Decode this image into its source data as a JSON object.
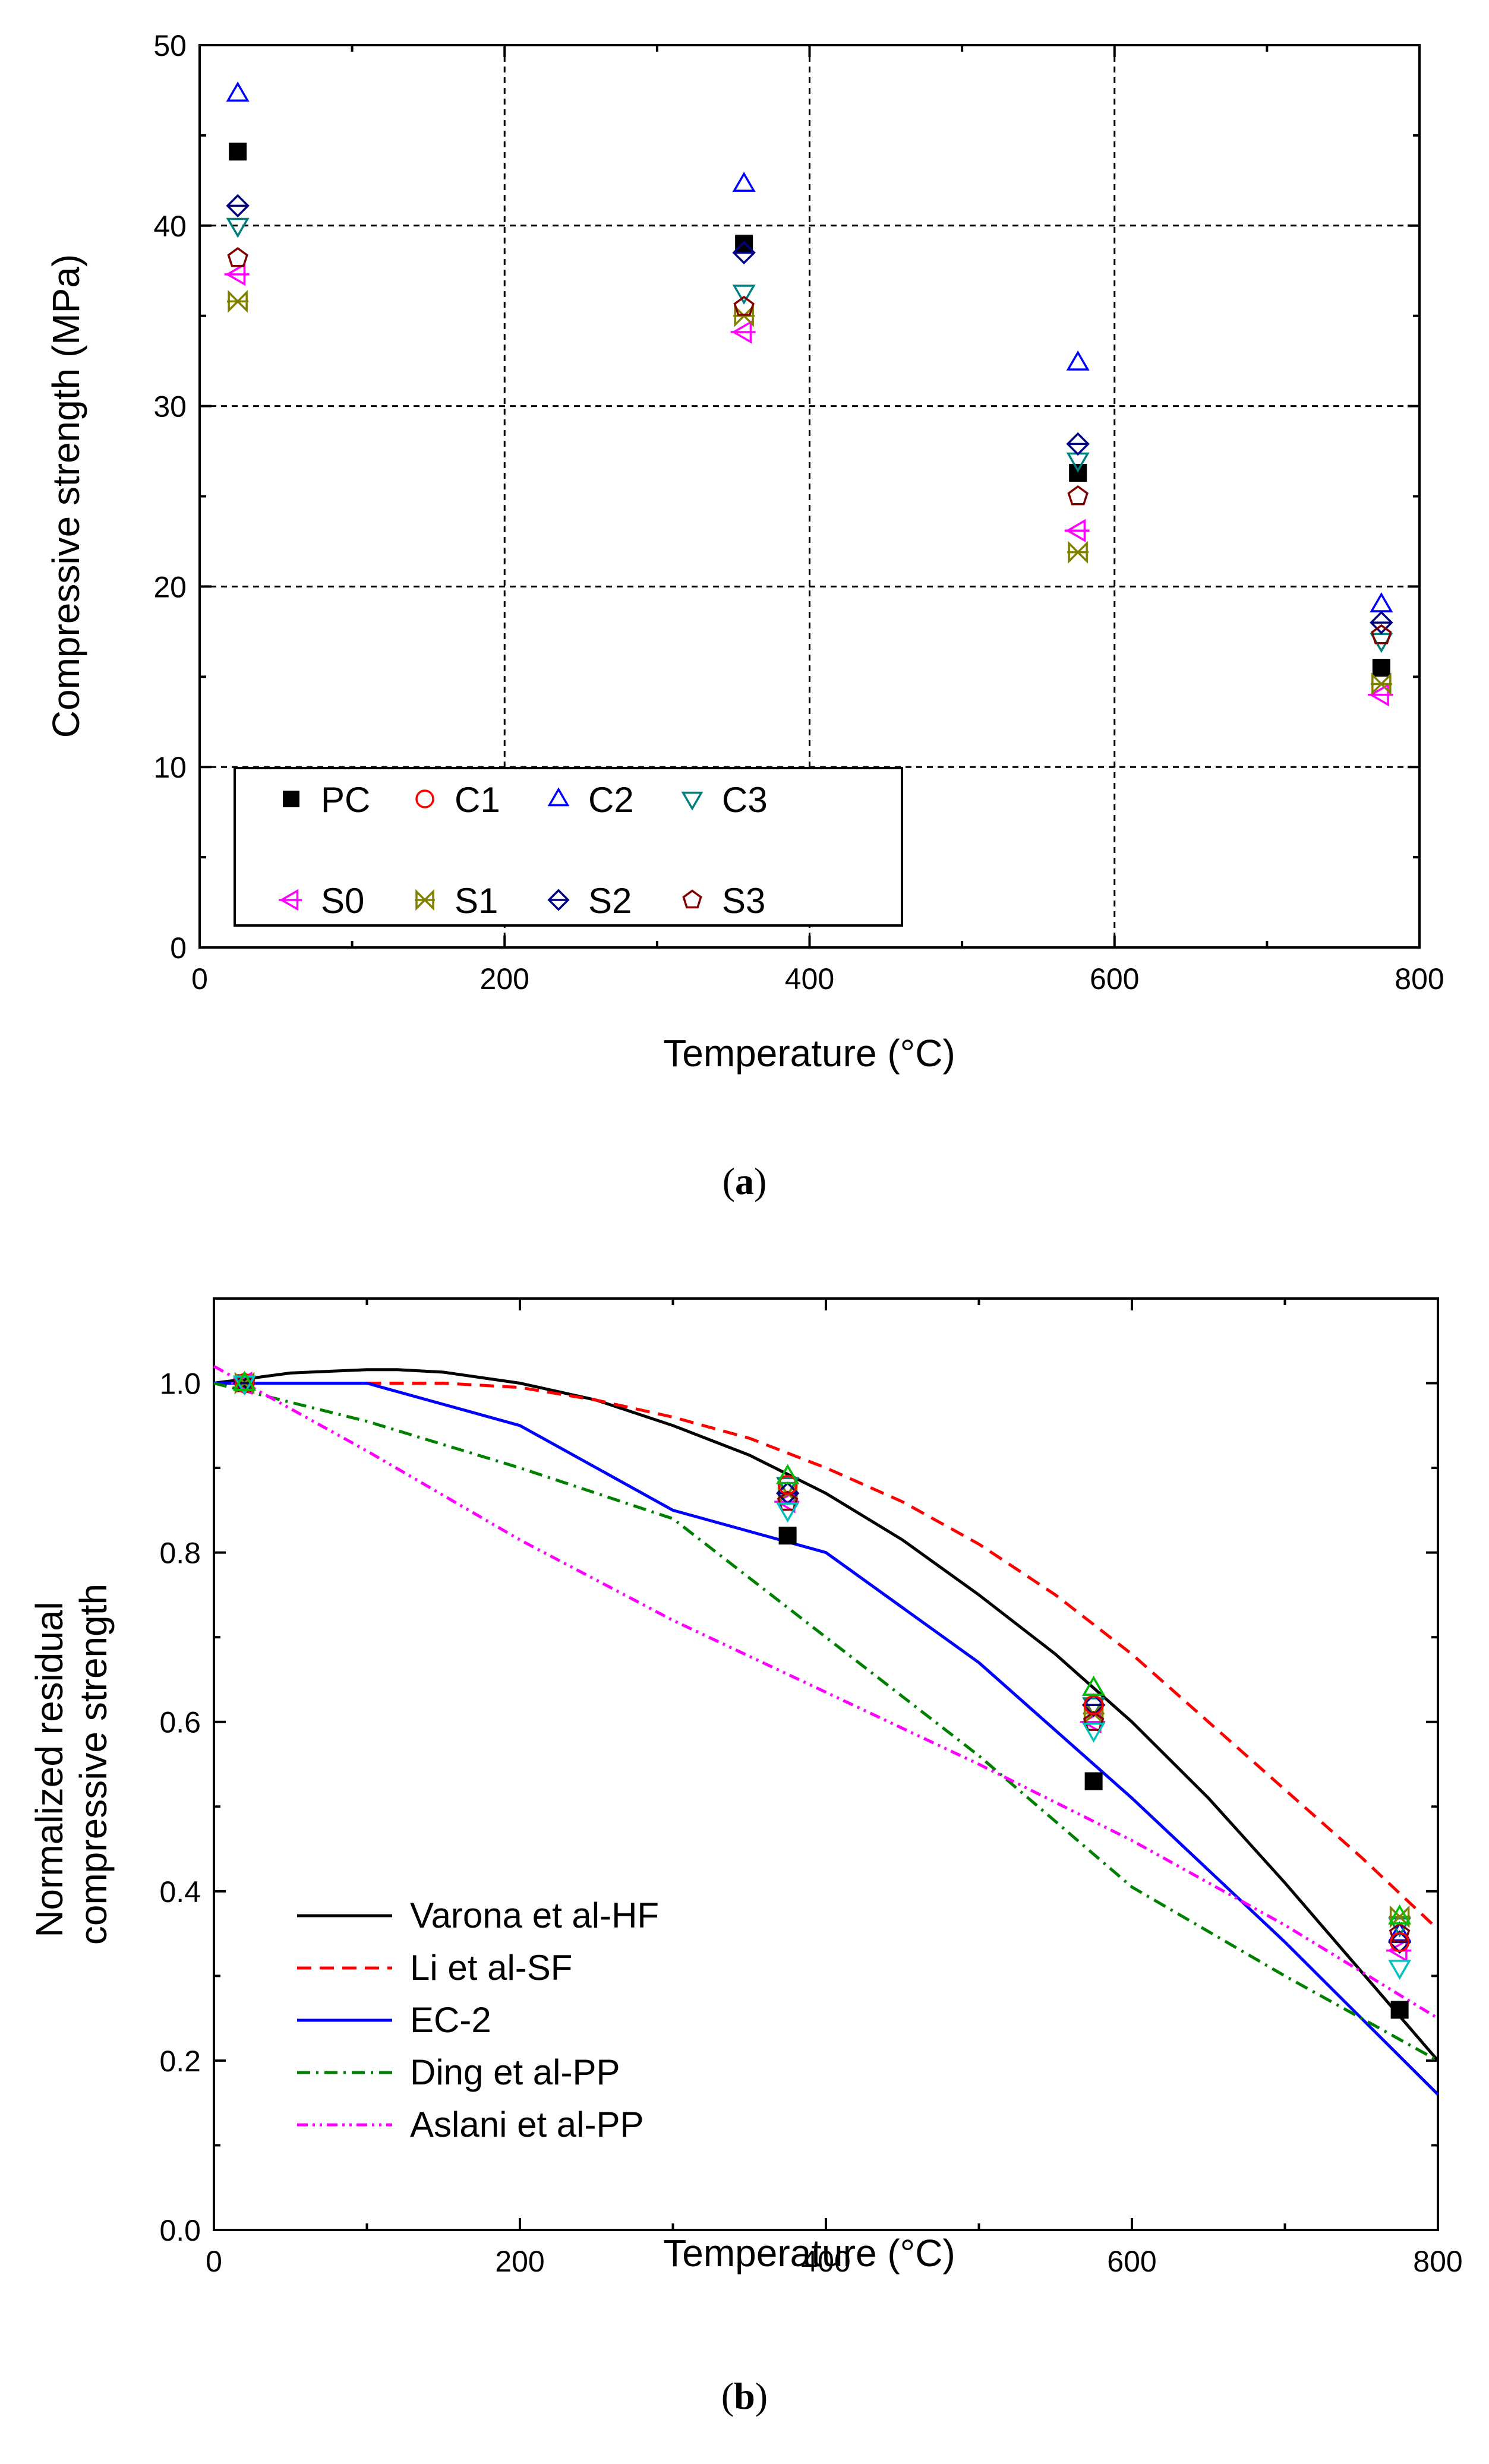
{
  "chart_data": [
    {
      "type": "scatter",
      "panel_label": "a",
      "xlabel": "Temperature (°C)",
      "ylabel": "Compressive strength (MPa)",
      "xlim": [
        0,
        800
      ],
      "ylim": [
        0,
        50
      ],
      "xticks": [
        0,
        200,
        400,
        600,
        800
      ],
      "yticks": [
        0,
        10,
        20,
        30,
        40,
        50
      ],
      "grid": true,
      "legend_position": "bottom-left",
      "x": [
        25,
        357,
        576,
        775
      ],
      "series": [
        {
          "name": "PC",
          "marker": "filled-square",
          "color": "#000000",
          "values": [
            44.1,
            39.0,
            26.3,
            15.5
          ]
        },
        {
          "name": "C1",
          "marker": "circle",
          "color": "#ff0000",
          "values": [
            null,
            null,
            null,
            null
          ]
        },
        {
          "name": "C2",
          "marker": "triangle-up",
          "color": "#0000ff",
          "values": [
            47.3,
            42.3,
            32.4,
            19.0
          ]
        },
        {
          "name": "C3",
          "marker": "triangle-down",
          "color": "#008080",
          "values": [
            40.0,
            36.3,
            27.0,
            17.0
          ]
        },
        {
          "name": "S0",
          "marker": "triangle-left",
          "color": "#ff00ff",
          "values": [
            37.3,
            34.1,
            23.1,
            14.0
          ]
        },
        {
          "name": "S1",
          "marker": "bowtie",
          "color": "#808000",
          "values": [
            35.8,
            35.0,
            21.9,
            14.6
          ]
        },
        {
          "name": "S2",
          "marker": "diamond",
          "color": "#000080",
          "values": [
            41.1,
            38.5,
            27.9,
            18.0
          ]
        },
        {
          "name": "S3",
          "marker": "pentagon",
          "color": "#800000",
          "values": [
            38.2,
            35.5,
            25.0,
            17.3
          ]
        }
      ]
    },
    {
      "type": "line",
      "panel_label": "b",
      "xlabel": "Temperature (°C)",
      "ylabel": "Normalized residual compressive strength",
      "xlim": [
        0,
        800
      ],
      "ylim": [
        0,
        1.1
      ],
      "xticks": [
        0,
        200,
        400,
        600,
        800
      ],
      "yticks": [
        0.0,
        0.2,
        0.4,
        0.6,
        0.8,
        1.0
      ],
      "grid": false,
      "legend_position": "bottom-left",
      "curves": [
        {
          "name": "Varona et al-HF",
          "color": "#000000",
          "dash": "solid",
          "x": [
            0,
            50,
            100,
            120,
            150,
            200,
            250,
            300,
            350,
            400,
            450,
            500,
            550,
            600,
            650,
            700,
            750,
            800
          ],
          "y": [
            1.0,
            1.012,
            1.016,
            1.016,
            1.013,
            1.0,
            0.98,
            0.95,
            0.915,
            0.87,
            0.815,
            0.75,
            0.68,
            0.6,
            0.51,
            0.41,
            0.305,
            0.2
          ]
        },
        {
          "name": "Li et al-SF",
          "color": "#ff0000",
          "dash": "dashed",
          "x": [
            100,
            150,
            200,
            250,
            300,
            350,
            400,
            450,
            500,
            550,
            600,
            650,
            700,
            750,
            800
          ],
          "y": [
            1.0,
            1.0,
            0.995,
            0.98,
            0.96,
            0.935,
            0.9,
            0.86,
            0.81,
            0.75,
            0.68,
            0.6,
            0.52,
            0.44,
            0.355
          ]
        },
        {
          "name": "EC-2",
          "color": "#0000ff",
          "dash": "solid",
          "x": [
            0,
            100,
            200,
            300,
            400,
            500,
            600,
            700,
            800
          ],
          "y": [
            1.0,
            1.0,
            0.95,
            0.85,
            0.8,
            0.67,
            0.51,
            0.34,
            0.16
          ]
        },
        {
          "name": "Ding et al-PP",
          "color": "#008000",
          "dash": "dashdot",
          "x": [
            0,
            100,
            200,
            300,
            400,
            500,
            600,
            700,
            800
          ],
          "y": [
            1.0,
            0.955,
            0.9,
            0.84,
            0.7,
            0.56,
            0.405,
            0.3,
            0.2
          ]
        },
        {
          "name": "Aslani et al-PP",
          "color": "#ff00ff",
          "dash": "dashdotdot",
          "x": [
            0,
            100,
            200,
            300,
            400,
            500,
            600,
            700,
            800
          ],
          "y": [
            1.02,
            0.92,
            0.815,
            0.72,
            0.635,
            0.55,
            0.46,
            0.36,
            0.25
          ]
        }
      ],
      "points": {
        "x": [
          20,
          375,
          575,
          775
        ],
        "series": [
          {
            "name": "PC",
            "marker": "filled-square",
            "color": "#000000",
            "values": [
              1.0,
              0.82,
              0.53,
              0.26
            ]
          },
          {
            "name": "C2",
            "marker": "triangle-up",
            "color": "#0000ff",
            "values": [
              1.0,
              0.89,
              0.64,
              0.35
            ]
          },
          {
            "name": "C3",
            "marker": "triangle-down",
            "color": "#008080",
            "values": [
              1.0,
              0.88,
              0.62,
              0.36
            ]
          },
          {
            "name": "S0",
            "marker": "triangle-left",
            "color": "#ff00ff",
            "values": [
              1.0,
              0.86,
              0.6,
              0.33
            ]
          },
          {
            "name": "S1",
            "marker": "bowtie",
            "color": "#808000",
            "values": [
              1.0,
              0.87,
              0.61,
              0.37
            ]
          },
          {
            "name": "S2",
            "marker": "diamond",
            "color": "#000080",
            "values": [
              1.0,
              0.87,
              0.62,
              0.34
            ]
          },
          {
            "name": "S3",
            "marker": "pentagon",
            "color": "#800000",
            "values": [
              1.0,
              0.86,
              0.6,
              0.35
            ]
          },
          {
            "name": "",
            "marker": "circle",
            "color": "#ff0000",
            "values": [
              1.0,
              0.88,
              0.62,
              0.34
            ]
          },
          {
            "name": "",
            "marker": "triangle-down",
            "color": "#00c0c0",
            "values": [
              1.0,
              0.85,
              0.59,
              0.31
            ]
          },
          {
            "name": "",
            "marker": "triangle-up",
            "color": "#00c000",
            "values": [
              1.0,
              0.89,
              0.64,
              0.37
            ]
          }
        ]
      }
    }
  ]
}
